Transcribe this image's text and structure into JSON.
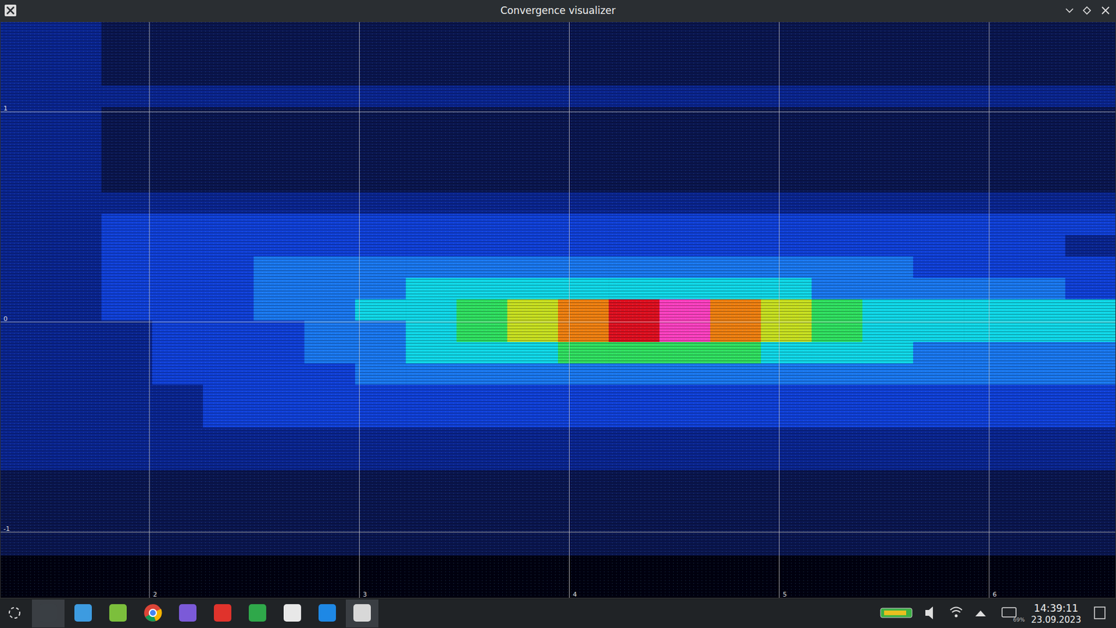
{
  "window": {
    "title": "Convergence visualizer"
  },
  "chart_data": {
    "type": "heatmap",
    "xlim": [
      1.288,
      6.604
    ],
    "ylim": [
      -1.315,
      1.43
    ],
    "xticks": [
      2,
      3,
      4,
      5,
      6
    ],
    "yticks": [
      -1,
      0,
      1
    ],
    "grid": true,
    "colors": [
      "#000010",
      "#0a1650",
      "#0a2590",
      "#1040d8",
      "#1a78f0",
      "#10d8e8",
      "#30e060",
      "#c8e020",
      "#f08010",
      "#e01020",
      "#ff40c0"
    ],
    "color_range": [
      0,
      10
    ],
    "cells": [
      [
        2,
        2,
        1,
        1,
        1,
        1,
        1,
        1,
        1,
        1,
        1,
        1,
        1,
        1,
        1,
        1,
        1,
        1,
        1,
        1,
        1,
        1
      ],
      [
        2,
        2,
        1,
        1,
        1,
        1,
        1,
        1,
        1,
        1,
        1,
        1,
        1,
        1,
        1,
        1,
        1,
        1,
        1,
        1,
        1,
        1
      ],
      [
        2,
        2,
        1,
        1,
        1,
        1,
        1,
        1,
        1,
        1,
        1,
        1,
        1,
        1,
        1,
        1,
        1,
        1,
        1,
        1,
        1,
        1
      ],
      [
        2,
        2,
        2,
        2,
        2,
        2,
        2,
        2,
        2,
        2,
        2,
        2,
        2,
        2,
        2,
        2,
        2,
        2,
        2,
        2,
        2,
        2
      ],
      [
        2,
        2,
        1,
        1,
        1,
        1,
        1,
        1,
        1,
        1,
        1,
        1,
        1,
        1,
        1,
        1,
        1,
        1,
        1,
        1,
        1,
        1
      ],
      [
        2,
        2,
        1,
        1,
        1,
        1,
        1,
        1,
        1,
        1,
        1,
        1,
        1,
        1,
        1,
        1,
        1,
        1,
        1,
        1,
        1,
        1
      ],
      [
        2,
        2,
        1,
        1,
        1,
        1,
        1,
        1,
        1,
        1,
        1,
        1,
        1,
        1,
        1,
        1,
        1,
        1,
        1,
        1,
        1,
        1
      ],
      [
        2,
        2,
        1,
        1,
        1,
        1,
        1,
        1,
        1,
        1,
        1,
        1,
        1,
        1,
        1,
        1,
        1,
        1,
        1,
        1,
        1,
        1
      ],
      [
        2,
        2,
        2,
        2,
        2,
        2,
        2,
        2,
        2,
        2,
        2,
        2,
        2,
        2,
        2,
        2,
        2,
        2,
        2,
        2,
        2,
        2
      ],
      [
        2,
        2,
        3,
        3,
        3,
        3,
        3,
        3,
        3,
        3,
        3,
        3,
        3,
        3,
        3,
        3,
        3,
        3,
        3,
        3,
        3,
        3
      ],
      [
        2,
        2,
        3,
        3,
        3,
        3,
        3,
        3,
        3,
        3,
        3,
        3,
        3,
        3,
        3,
        3,
        3,
        3,
        3,
        3,
        3,
        2
      ],
      [
        2,
        2,
        3,
        3,
        3,
        4,
        4,
        4,
        4,
        4,
        4,
        4,
        4,
        4,
        4,
        4,
        4,
        4,
        3,
        3,
        3,
        3
      ],
      [
        2,
        2,
        3,
        3,
        3,
        4,
        4,
        4,
        5,
        5,
        5,
        5,
        5,
        5,
        5,
        5,
        4,
        4,
        4,
        4,
        4,
        3
      ],
      [
        2,
        2,
        3,
        3,
        3,
        4,
        4,
        5,
        5,
        6,
        7,
        8,
        9,
        10,
        8,
        7,
        6,
        5,
        5,
        5,
        5,
        5
      ],
      [
        2,
        2,
        2,
        3,
        3,
        3,
        4,
        4,
        5,
        6,
        7,
        8,
        9,
        10,
        8,
        7,
        6,
        5,
        5,
        5,
        5,
        5
      ],
      [
        2,
        2,
        2,
        3,
        3,
        3,
        4,
        4,
        5,
        5,
        5,
        6,
        6,
        6,
        6,
        5,
        5,
        5,
        4,
        4,
        4,
        4
      ],
      [
        2,
        2,
        2,
        3,
        3,
        3,
        3,
        4,
        4,
        4,
        4,
        4,
        4,
        4,
        4,
        4,
        4,
        4,
        4,
        4,
        4,
        4
      ],
      [
        2,
        2,
        2,
        2,
        3,
        3,
        3,
        3,
        3,
        3,
        3,
        3,
        3,
        3,
        3,
        3,
        3,
        3,
        3,
        3,
        3,
        3
      ],
      [
        2,
        2,
        2,
        2,
        3,
        3,
        3,
        3,
        3,
        3,
        3,
        3,
        3,
        3,
        3,
        3,
        3,
        3,
        3,
        3,
        3,
        3
      ],
      [
        2,
        2,
        2,
        2,
        2,
        2,
        2,
        2,
        2,
        2,
        2,
        2,
        2,
        2,
        2,
        2,
        2,
        2,
        2,
        2,
        2,
        2
      ],
      [
        2,
        2,
        2,
        2,
        2,
        2,
        2,
        2,
        2,
        2,
        2,
        2,
        2,
        2,
        2,
        2,
        2,
        2,
        2,
        2,
        2,
        2
      ],
      [
        1,
        1,
        1,
        1,
        1,
        1,
        1,
        1,
        1,
        1,
        1,
        1,
        1,
        1,
        1,
        1,
        1,
        1,
        1,
        1,
        1,
        1
      ],
      [
        1,
        1,
        1,
        1,
        1,
        1,
        1,
        1,
        1,
        1,
        1,
        1,
        1,
        1,
        1,
        1,
        1,
        1,
        1,
        1,
        1,
        1
      ],
      [
        1,
        1,
        1,
        1,
        1,
        1,
        1,
        1,
        1,
        1,
        1,
        1,
        1,
        1,
        1,
        1,
        1,
        1,
        1,
        1,
        1,
        1
      ],
      [
        1,
        1,
        1,
        1,
        1,
        1,
        1,
        1,
        1,
        1,
        1,
        1,
        1,
        1,
        1,
        1,
        1,
        1,
        1,
        1,
        1,
        1
      ],
      [
        0,
        0,
        0,
        0,
        0,
        0,
        0,
        0,
        0,
        0,
        0,
        0,
        0,
        0,
        0,
        0,
        0,
        0,
        0,
        0,
        0,
        0
      ],
      [
        0,
        0,
        0,
        0,
        0,
        0,
        0,
        0,
        0,
        0,
        0,
        0,
        0,
        0,
        0,
        0,
        0,
        0,
        0,
        0,
        0,
        0
      ]
    ]
  },
  "taskbar": {
    "time": "14:39:11",
    "date": "23.09.2023",
    "battery": "69%"
  }
}
